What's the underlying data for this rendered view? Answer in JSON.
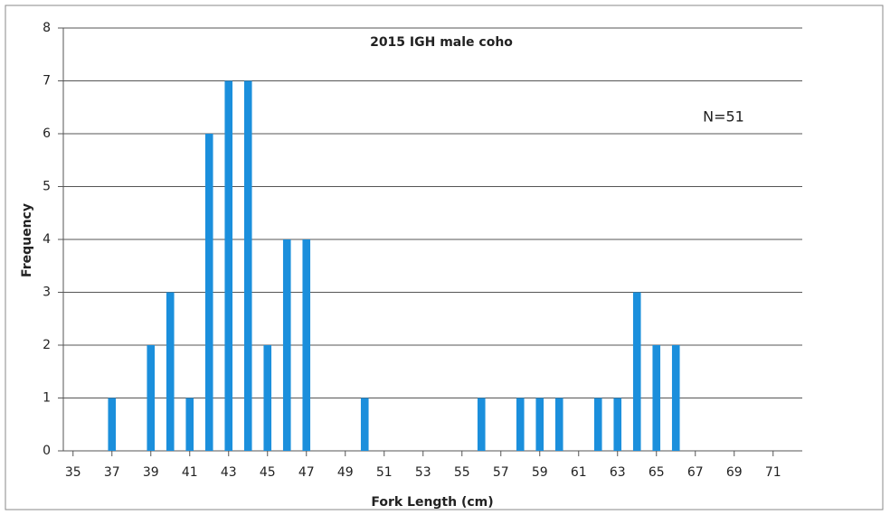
{
  "chart_data": {
    "type": "bar",
    "title": "2015 IGH male coho",
    "annotation": "N=51",
    "x_label": "Fork Length (cm)",
    "y_label": "Frequency",
    "x": [
      37,
      39,
      40,
      41,
      42,
      43,
      44,
      45,
      46,
      47,
      50,
      56,
      58,
      59,
      60,
      62,
      63,
      64,
      65,
      66
    ],
    "values": [
      1,
      2,
      3,
      1,
      6,
      7,
      7,
      2,
      4,
      4,
      1,
      1,
      1,
      1,
      1,
      1,
      1,
      3,
      2,
      2
    ],
    "color": "#1b8fdc",
    "xlim": [
      34.5,
      72.5
    ],
    "xticks": [
      35,
      37,
      39,
      41,
      43,
      45,
      47,
      49,
      51,
      53,
      55,
      57,
      59,
      61,
      63,
      65,
      67,
      69,
      71
    ],
    "ylim": [
      0,
      8
    ],
    "yticks": [
      0,
      1,
      2,
      3,
      4,
      5,
      6,
      7,
      8
    ],
    "grid": true
  }
}
